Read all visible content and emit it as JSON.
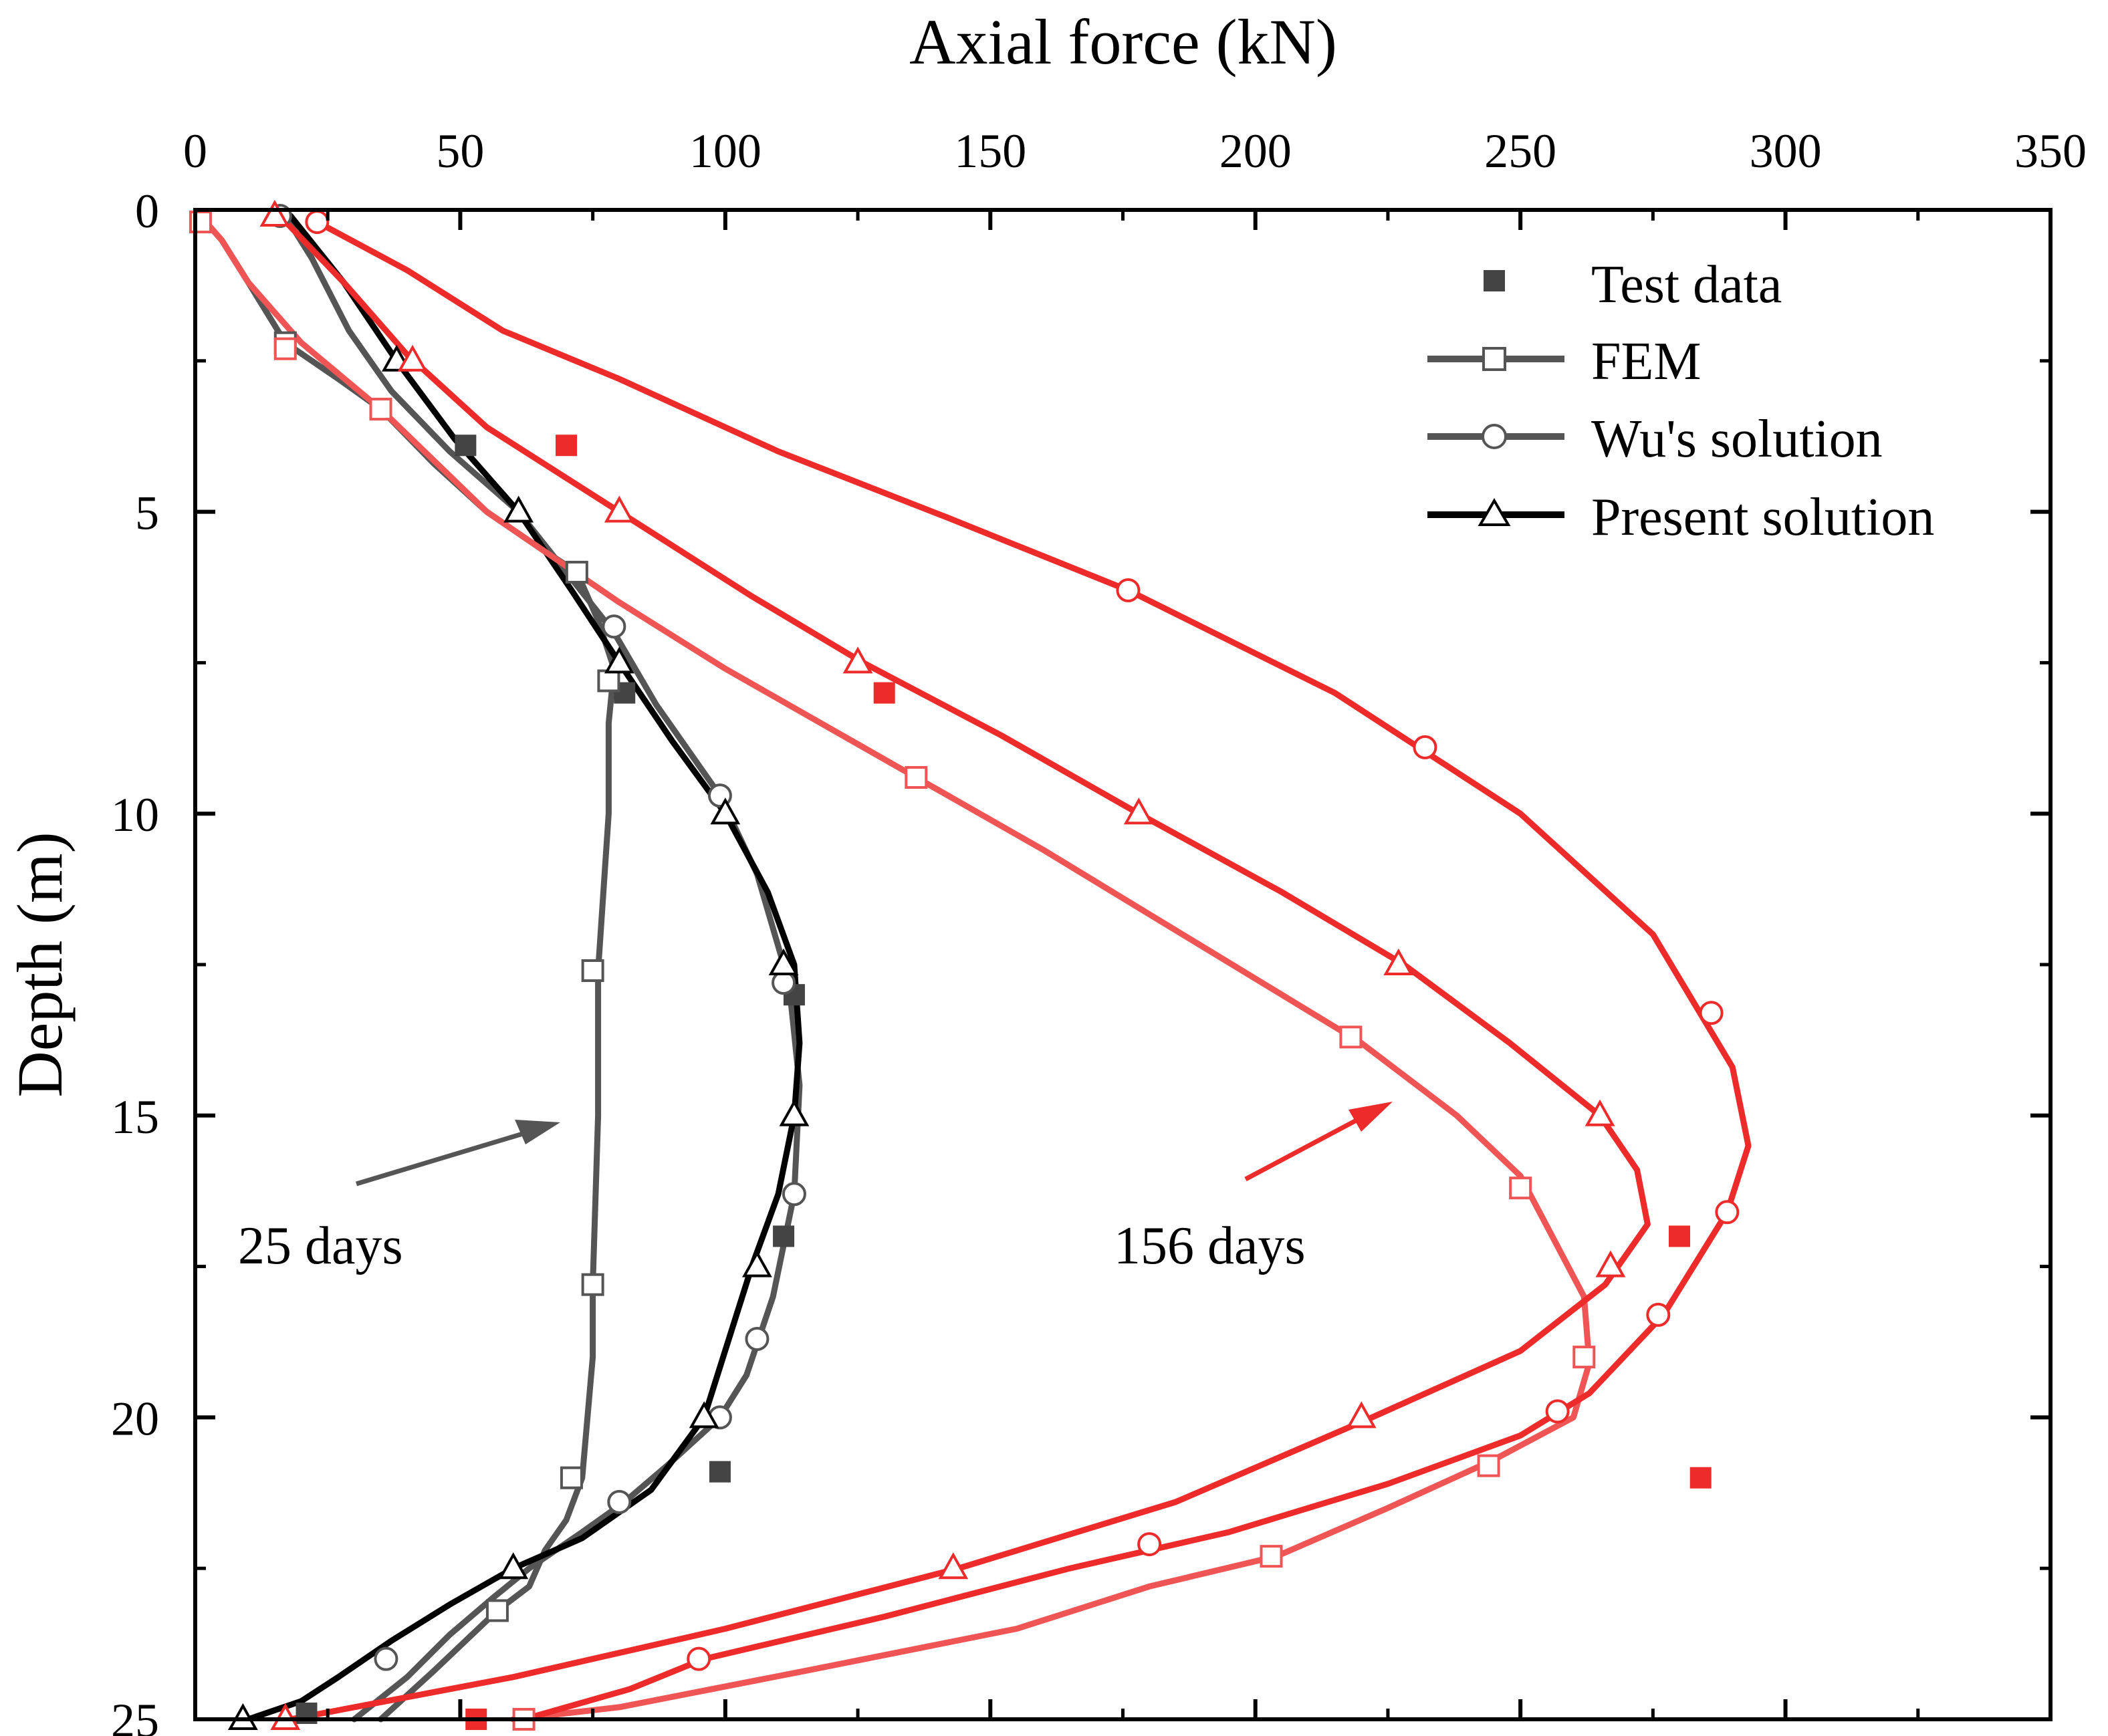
{
  "chart_data": {
    "type": "line",
    "title": "",
    "xlabel": "Axial force (kN)",
    "ylabel": "Depth (m)",
    "x_axis_position": "top",
    "y_axis_inverted": true,
    "xlim": [
      0,
      350
    ],
    "ylim": [
      0,
      25
    ],
    "xticks": [
      "0",
      "50",
      "100",
      "150",
      "200",
      "250",
      "300",
      "350"
    ],
    "yticks": [
      "0",
      "5",
      "10",
      "15",
      "20",
      "25"
    ],
    "grid": false,
    "legend": {
      "position": "top-right",
      "entries": [
        {
          "label": "Test data",
          "marker": "square-filled",
          "line": false
        },
        {
          "label": "FEM",
          "marker": "square-open",
          "line": true
        },
        {
          "label": "Wu's solution",
          "marker": "circle-open",
          "line": true
        },
        {
          "label": "Present solution",
          "marker": "triangle-open",
          "line": true
        }
      ]
    },
    "annotations": [
      {
        "text": "25 days",
        "x": 26,
        "y": 17.4
      },
      {
        "text": "156 days",
        "x": 193,
        "y": 17.4
      }
    ],
    "colors": {
      "grey": "#555555",
      "black": "#000000",
      "red": "#ee2b2b",
      "red_light": "#f05555"
    },
    "series": [
      {
        "name": "Test data",
        "group": "25 days",
        "kind": "test",
        "color": "#444444",
        "x": [
          51,
          81,
          113,
          111,
          99,
          21
        ],
        "y": [
          3.9,
          8.0,
          13.0,
          17.0,
          20.9,
          24.9
        ]
      },
      {
        "name": "FEM",
        "group": "25 days",
        "kind": "fem",
        "color": "#555555",
        "x": [
          1,
          5,
          10,
          17,
          27,
          35,
          45,
          55,
          65,
          72,
          76,
          79,
          78,
          78,
          76,
          76,
          75,
          75,
          74,
          73,
          70,
          66,
          63,
          57,
          45,
          35
        ],
        "y": [
          0.1,
          0.5,
          1.2,
          2.2,
          2.8,
          3.3,
          4.2,
          5.0,
          5.6,
          6.0,
          6.8,
          7.6,
          8.5,
          10.0,
          12.6,
          15.0,
          17.8,
          19.0,
          20.0,
          21.0,
          21.7,
          22.2,
          22.8,
          23.2,
          24.2,
          25.0
        ],
        "markers_x": [
          17,
          35,
          72,
          78,
          75,
          75,
          71,
          57
        ],
        "markers_y": [
          2.2,
          3.3,
          6.0,
          7.8,
          12.6,
          17.8,
          21.0,
          23.2
        ]
      },
      {
        "name": "Wu's solution",
        "group": "25 days",
        "kind": "wu",
        "color": "#555555",
        "x": [
          17,
          22,
          29,
          37,
          48,
          61,
          70,
          79,
          87,
          99,
          106,
          112,
          114,
          113,
          109,
          104,
          99,
          89,
          81,
          73,
          63,
          56,
          48,
          40,
          30
        ],
        "y": [
          0.1,
          0.8,
          2.0,
          3.0,
          4.0,
          5.0,
          6.0,
          7.0,
          8.2,
          9.7,
          11.0,
          12.8,
          14.5,
          16.3,
          18.0,
          19.3,
          20.0,
          20.8,
          21.4,
          21.9,
          22.5,
          23.0,
          23.6,
          24.3,
          25.0
        ],
        "markers_x": [
          16,
          79,
          99,
          111,
          113,
          106,
          99,
          80,
          36
        ],
        "markers_y": [
          0.1,
          6.9,
          9.7,
          12.8,
          16.3,
          18.7,
          20.0,
          21.4,
          24.0
        ]
      },
      {
        "name": "Present solution",
        "group": "25 days",
        "kind": "present",
        "color": "#000000",
        "x": [
          18,
          28,
          38,
          49,
          61,
          71,
          80,
          90,
          100,
          108,
          113,
          114,
          113,
          110,
          105,
          96,
          86,
          73,
          60,
          48,
          37,
          27,
          20,
          10
        ],
        "y": [
          0.1,
          1.2,
          2.5,
          3.8,
          5.0,
          6.3,
          7.5,
          8.8,
          10.0,
          11.3,
          12.5,
          13.8,
          15.0,
          16.3,
          17.5,
          20.0,
          21.2,
          22.0,
          22.5,
          23.1,
          23.7,
          24.3,
          24.7,
          25.0
        ],
        "markers_x": [
          38,
          61,
          80,
          100,
          111,
          113,
          106,
          96,
          60,
          9
        ],
        "markers_y": [
          2.5,
          5.0,
          7.5,
          10.0,
          12.5,
          15.0,
          17.5,
          20.0,
          22.5,
          25.0
        ]
      },
      {
        "name": "Test data",
        "group": "156 days",
        "kind": "test",
        "color": "#ee2b2b",
        "x": [
          70,
          130,
          280,
          284,
          53
        ],
        "y": [
          3.9,
          8.0,
          17.0,
          21.0,
          25.0
        ]
      },
      {
        "name": "FEM",
        "group": "156 days",
        "kind": "fem",
        "color": "#f05555",
        "x": [
          1,
          5,
          10,
          20,
          35,
          55,
          80,
          100,
          136,
          160,
          190,
          220,
          238,
          250,
          256,
          262,
          263,
          260,
          245,
          225,
          204,
          180,
          155,
          115,
          80,
          60
        ],
        "y": [
          0.1,
          0.5,
          1.2,
          2.2,
          3.3,
          5.0,
          6.5,
          7.6,
          9.4,
          10.6,
          12.2,
          13.8,
          15.0,
          16.0,
          17.0,
          18.0,
          19.1,
          20.0,
          20.7,
          21.5,
          22.3,
          22.8,
          23.5,
          24.2,
          24.8,
          25.0
        ],
        "markers_x": [
          1,
          17,
          35,
          136,
          218,
          250,
          262,
          244,
          203,
          62
        ],
        "markers_y": [
          0.2,
          2.3,
          3.3,
          9.4,
          13.7,
          16.2,
          19.0,
          20.8,
          22.3,
          25.0
        ]
      },
      {
        "name": "Wu's solution",
        "group": "156 days",
        "kind": "wu",
        "color": "#ee2b2b",
        "x": [
          23,
          40,
          58,
          80,
          110,
          142,
          176,
          215,
          250,
          275,
          290,
          293,
          289,
          277,
          263,
          250,
          225,
          195,
          165,
          130,
          96,
          82,
          62
        ],
        "y": [
          0.2,
          1.0,
          2.0,
          2.8,
          4.0,
          5.1,
          6.3,
          8.0,
          10.0,
          12.0,
          14.2,
          15.5,
          16.6,
          18.3,
          19.6,
          20.3,
          21.1,
          21.9,
          22.5,
          23.3,
          24.0,
          24.5,
          25.0
        ],
        "markers_x": [
          23,
          176,
          232,
          286,
          289,
          276,
          257,
          180,
          95
        ],
        "markers_y": [
          0.2,
          6.3,
          8.9,
          13.3,
          16.6,
          18.3,
          19.9,
          22.1,
          24.0
        ]
      },
      {
        "name": "Present solution",
        "group": "156 days",
        "kind": "present",
        "color": "#ee2b2b",
        "x": [
          16,
          28,
          40,
          55,
          80,
          105,
          126,
          152,
          178,
          205,
          228,
          248,
          265,
          272,
          274,
          266,
          250,
          222,
          185,
          144,
          100,
          60,
          18
        ],
        "y": [
          0.1,
          1.2,
          2.4,
          3.6,
          5.0,
          6.4,
          7.5,
          8.7,
          10.0,
          11.3,
          12.5,
          13.8,
          15.0,
          15.9,
          16.8,
          17.8,
          18.9,
          20.0,
          21.4,
          22.5,
          23.5,
          24.3,
          25.0
        ],
        "markers_x": [
          15,
          41,
          80,
          125,
          178,
          227,
          265,
          267,
          220,
          143,
          17
        ],
        "markers_y": [
          0.1,
          2.5,
          5.0,
          7.5,
          10.0,
          12.5,
          15.0,
          17.5,
          20.0,
          22.5,
          25.0
        ]
      }
    ]
  }
}
